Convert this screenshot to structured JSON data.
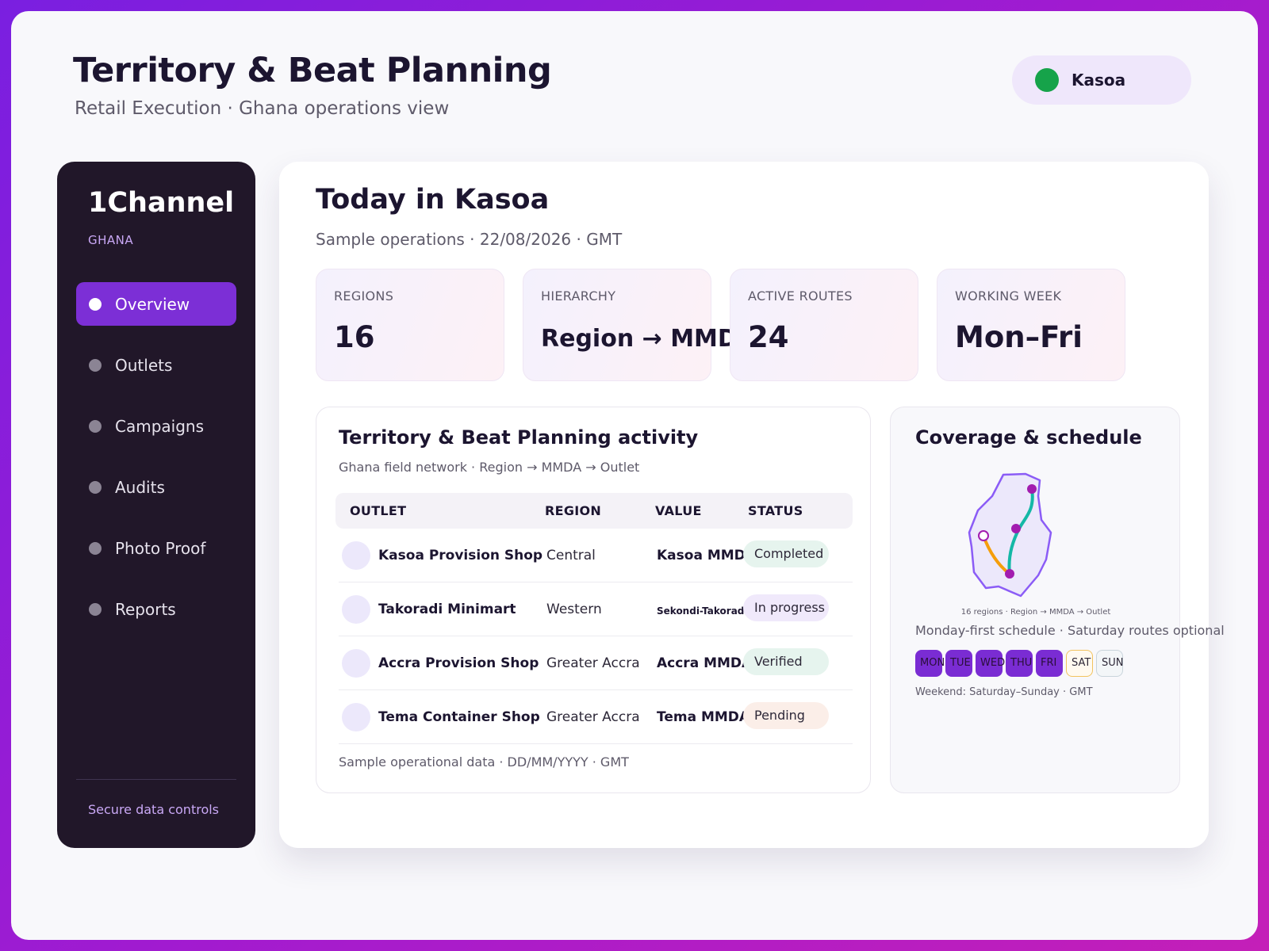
{
  "header": {
    "title": "Territory & Beat Planning",
    "subtitle": "Retail Execution · Ghana operations view",
    "location": "Kasoa",
    "location_status_color": "#16a34a"
  },
  "sidebar": {
    "brand": "1Channel",
    "country": "GHANA",
    "items": [
      {
        "label": "Overview",
        "active": true
      },
      {
        "label": "Outlets",
        "active": false
      },
      {
        "label": "Campaigns",
        "active": false
      },
      {
        "label": "Audits",
        "active": false
      },
      {
        "label": "Photo Proof",
        "active": false
      },
      {
        "label": "Reports",
        "active": false
      }
    ],
    "footer": "Secure data controls"
  },
  "main": {
    "title": "Today in Kasoa",
    "subtitle": "Sample operations · 22/08/2026 · GMT",
    "kpis": [
      {
        "label": "REGIONS",
        "value": "16"
      },
      {
        "label": "HIERARCHY",
        "value": "Region → MMDA"
      },
      {
        "label": "ACTIVE ROUTES",
        "value": "24"
      },
      {
        "label": "WORKING WEEK",
        "value": "Mon–Fri"
      }
    ]
  },
  "activity": {
    "title": "Territory & Beat Planning activity",
    "subtitle": "Ghana field network · Region → MMDA → Outlet",
    "columns": [
      "OUTLET",
      "REGION",
      "VALUE",
      "STATUS"
    ],
    "rows": [
      {
        "outlet": "Kasoa Provision Shop",
        "region": "Central",
        "value": "Kasoa MMDA",
        "status": "Completed",
        "status_color": "#e6f4ee"
      },
      {
        "outlet": "Takoradi Minimart",
        "region": "Western",
        "value": "Sekondi-Takoradi MMDA",
        "status": "In progress",
        "status_color": "#f0e9fb"
      },
      {
        "outlet": "Accra Provision Shop",
        "region": "Greater Accra",
        "value": "Accra MMDA",
        "status": "Verified",
        "status_color": "#e6f4ee"
      },
      {
        "outlet": "Tema Container Shop",
        "region": "Greater Accra",
        "value": "Tema MMDA",
        "status": "Pending",
        "status_color": "#fbeee8"
      }
    ],
    "footer": "Sample operational data · DD/MM/YYYY · GMT"
  },
  "coverage": {
    "title": "Coverage & schedule",
    "map_caption": "16 regions · Region → MMDA → Outlet",
    "schedule_note": "Monday-first schedule · Saturday routes optional",
    "days": [
      "MON",
      "TUE",
      "WED",
      "THU",
      "FRI",
      "SAT",
      "SUN"
    ],
    "weekend_note": "Weekend: Saturday–Sunday · GMT",
    "colors": {
      "weekday": "#7a2cd3",
      "route_primary": "#14b8a6",
      "route_secondary": "#f59e0b",
      "marker": "#a21caf"
    }
  }
}
